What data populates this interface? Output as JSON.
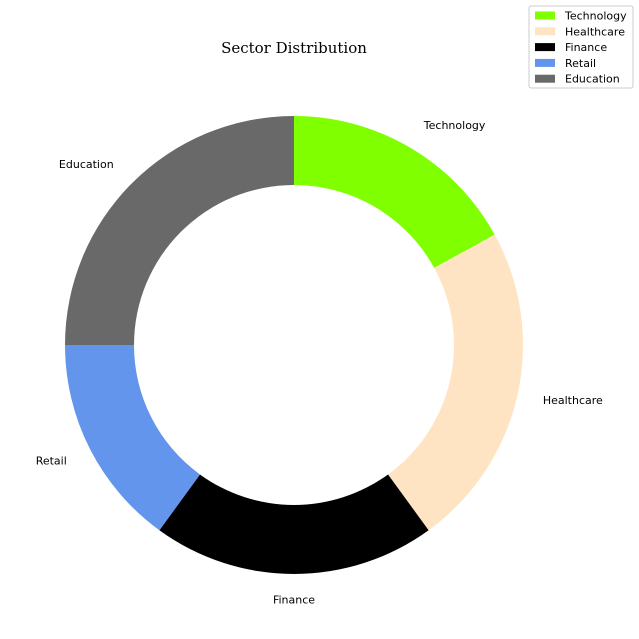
{
  "chart_data": {
    "type": "pie",
    "variant": "donut",
    "title": "Sector Distribution",
    "categories": [
      "Technology",
      "Healthcare",
      "Finance",
      "Retail",
      "Education"
    ],
    "values": [
      17,
      23,
      20,
      15,
      25
    ],
    "unit": "%",
    "colors": [
      "#7fff00",
      "#ffe4c4",
      "#000000",
      "#6495ed",
      "#696969"
    ],
    "start_angle_deg": 90,
    "direction": "clockwise",
    "legend": {
      "position": "top-right",
      "entries": [
        "Technology",
        "Healthcare",
        "Finance",
        "Retail",
        "Education"
      ]
    }
  }
}
